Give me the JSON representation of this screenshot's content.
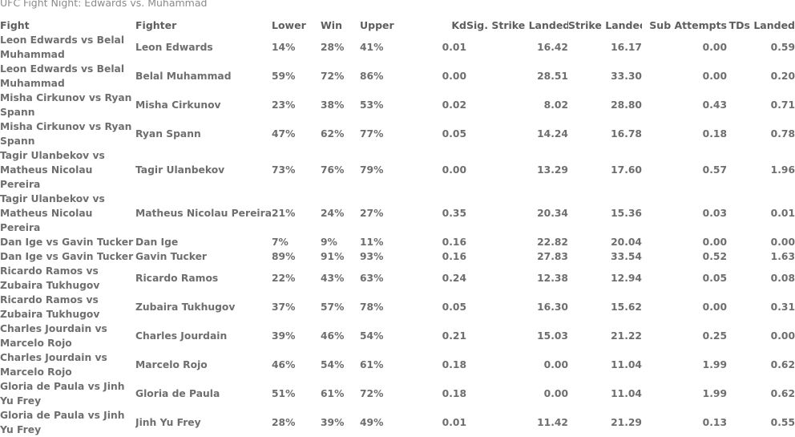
{
  "title": "UFC Fight Night: Edwards vs. Muhammad",
  "columns": [
    "Fight",
    "Fighter",
    "Lower",
    "Win",
    "Upper",
    "Kd",
    "Sig. Strike Landed",
    "Strike Landed",
    "Sub Attempts",
    "TDs Landed"
  ],
  "rows": [
    {
      "fight": "Leon Edwards vs Belal Muhammad",
      "fighter": "Leon Edwards",
      "lower": "14%",
      "win": "28%",
      "upper": "41%",
      "kd": "0.01",
      "sig": "16.42",
      "strike": "16.17",
      "sub": "0.00",
      "td": "0.59"
    },
    {
      "fight": "Leon Edwards vs Belal Muhammad",
      "fighter": "Belal Muhammad",
      "lower": "59%",
      "win": "72%",
      "upper": "86%",
      "kd": "0.00",
      "sig": "28.51",
      "strike": "33.30",
      "sub": "0.00",
      "td": "0.20"
    },
    {
      "fight": "Misha Cirkunov vs Ryan Spann",
      "fighter": "Misha Cirkunov",
      "lower": "23%",
      "win": "38%",
      "upper": "53%",
      "kd": "0.02",
      "sig": "8.02",
      "strike": "28.80",
      "sub": "0.43",
      "td": "0.71"
    },
    {
      "fight": "Misha Cirkunov vs Ryan Spann",
      "fighter": "Ryan Spann",
      "lower": "47%",
      "win": "62%",
      "upper": "77%",
      "kd": "0.05",
      "sig": "14.24",
      "strike": "16.78",
      "sub": "0.18",
      "td": "0.78"
    },
    {
      "fight": "Tagir Ulanbekov vs Matheus Nicolau Pereira",
      "fighter": "Tagir Ulanbekov",
      "lower": "73%",
      "win": "76%",
      "upper": "79%",
      "kd": "0.00",
      "sig": "13.29",
      "strike": "17.60",
      "sub": "0.57",
      "td": "1.96"
    },
    {
      "fight": "Tagir Ulanbekov vs Matheus Nicolau Pereira",
      "fighter": "Matheus Nicolau Pereira",
      "lower": "21%",
      "win": "24%",
      "upper": "27%",
      "kd": "0.35",
      "sig": "20.34",
      "strike": "15.36",
      "sub": "0.03",
      "td": "0.01"
    },
    {
      "fight": "Dan Ige vs Gavin Tucker",
      "fighter": "Dan Ige",
      "lower": "7%",
      "win": "9%",
      "upper": "11%",
      "kd": "0.16",
      "sig": "22.82",
      "strike": "20.04",
      "sub": "0.00",
      "td": "0.00"
    },
    {
      "fight": "Dan Ige vs Gavin Tucker",
      "fighter": "Gavin Tucker",
      "lower": "89%",
      "win": "91%",
      "upper": "93%",
      "kd": "0.16",
      "sig": "27.83",
      "strike": "33.54",
      "sub": "0.52",
      "td": "1.63"
    },
    {
      "fight": "Ricardo Ramos vs Zubaira Tukhugov",
      "fighter": "Ricardo Ramos",
      "lower": "22%",
      "win": "43%",
      "upper": "63%",
      "kd": "0.24",
      "sig": "12.38",
      "strike": "12.94",
      "sub": "0.05",
      "td": "0.08"
    },
    {
      "fight": "Ricardo Ramos vs Zubaira Tukhugov",
      "fighter": "Zubaira Tukhugov",
      "lower": "37%",
      "win": "57%",
      "upper": "78%",
      "kd": "0.05",
      "sig": "16.30",
      "strike": "15.62",
      "sub": "0.00",
      "td": "0.31"
    },
    {
      "fight": "Charles Jourdain vs Marcelo Rojo",
      "fighter": "Charles Jourdain",
      "lower": "39%",
      "win": "46%",
      "upper": "54%",
      "kd": "0.21",
      "sig": "15.03",
      "strike": "21.22",
      "sub": "0.25",
      "td": "0.00"
    },
    {
      "fight": "Charles Jourdain vs Marcelo Rojo",
      "fighter": "Marcelo Rojo",
      "lower": "46%",
      "win": "54%",
      "upper": "61%",
      "kd": "0.18",
      "sig": "0.00",
      "strike": "11.04",
      "sub": "1.99",
      "td": "0.62"
    },
    {
      "fight": "Gloria de Paula vs Jinh Yu Frey",
      "fighter": "Gloria de Paula",
      "lower": "51%",
      "win": "61%",
      "upper": "72%",
      "kd": "0.18",
      "sig": "0.00",
      "strike": "11.04",
      "sub": "1.99",
      "td": "0.62"
    },
    {
      "fight": "Gloria de Paula vs Jinh Yu Frey",
      "fighter": "Jinh Yu Frey",
      "lower": "28%",
      "win": "39%",
      "upper": "49%",
      "kd": "0.01",
      "sig": "11.42",
      "strike": "21.29",
      "sub": "0.13",
      "td": "0.55"
    }
  ]
}
